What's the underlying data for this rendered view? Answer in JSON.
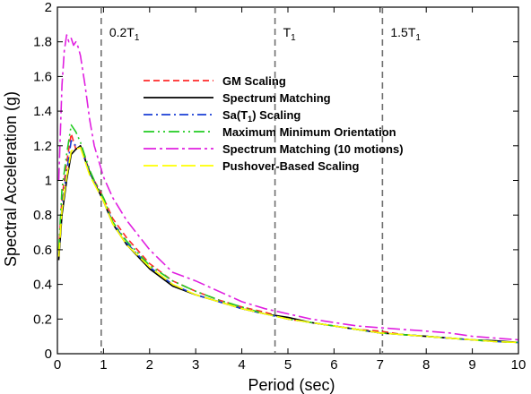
{
  "chart_data": {
    "type": "line",
    "xlabel": "Period (sec)",
    "ylabel": "Spectral Acceleration (g)",
    "xlim": [
      0,
      10
    ],
    "ylim": [
      0,
      2
    ],
    "xticks": [
      "0",
      "1",
      "2",
      "3",
      "4",
      "5",
      "6",
      "7",
      "8",
      "9",
      "10"
    ],
    "yticks": [
      "0",
      "0.2",
      "0.4",
      "0.6",
      "0.8",
      "1",
      "1.2",
      "1.4",
      "1.6",
      "1.8",
      "2"
    ],
    "grid": false,
    "legend_position": "upper-middle",
    "reference_lines": [
      {
        "x": 0.95,
        "label": "0.2T",
        "sub": "1"
      },
      {
        "x": 4.72,
        "label": "T",
        "sub": "1"
      },
      {
        "x": 7.05,
        "label": "1.5T",
        "sub": "1"
      }
    ],
    "series": [
      {
        "name": "GM Scaling",
        "color": "#ff2a2a",
        "dash": "7,4",
        "width": 1.6,
        "x": [
          0.03,
          0.1,
          0.2,
          0.3,
          0.4,
          0.5,
          0.6,
          0.7,
          0.8,
          1.0,
          1.2,
          1.5,
          2,
          2.5,
          3,
          3.5,
          4,
          4.5,
          5,
          5.5,
          6,
          6.5,
          7,
          7.5,
          8,
          8.5,
          9,
          9.5,
          10
        ],
        "y": [
          0.6,
          0.9,
          1.1,
          1.27,
          1.18,
          1.2,
          1.13,
          1.05,
          1.0,
          0.9,
          0.78,
          0.67,
          0.52,
          0.42,
          0.36,
          0.31,
          0.27,
          0.24,
          0.2,
          0.18,
          0.16,
          0.14,
          0.13,
          0.11,
          0.1,
          0.09,
          0.08,
          0.07,
          0.065
        ]
      },
      {
        "name": "Spectrum Matching",
        "color": "#000000",
        "dash": "",
        "width": 1.6,
        "x": [
          0.03,
          0.1,
          0.2,
          0.3,
          0.4,
          0.5,
          0.6,
          0.7,
          0.8,
          1.0,
          1.2,
          1.5,
          2,
          2.5,
          3,
          3.5,
          4,
          4.5,
          5,
          5.5,
          6,
          6.5,
          7,
          7.5,
          8,
          8.5,
          9,
          9.5,
          10
        ],
        "y": [
          0.54,
          0.8,
          1.0,
          1.15,
          1.18,
          1.2,
          1.12,
          1.05,
          0.99,
          0.88,
          0.75,
          0.63,
          0.49,
          0.39,
          0.34,
          0.3,
          0.26,
          0.23,
          0.21,
          0.18,
          0.16,
          0.14,
          0.12,
          0.11,
          0.1,
          0.09,
          0.08,
          0.075,
          0.065
        ]
      },
      {
        "name": "Sa(T1) Scaling",
        "color": "#1a3fd6",
        "dash": "10,4,2,4",
        "width": 1.6,
        "x": [
          0.03,
          0.1,
          0.2,
          0.3,
          0.4,
          0.5,
          0.6,
          0.7,
          0.8,
          1.0,
          1.2,
          1.5,
          2,
          2.5,
          3,
          3.5,
          4,
          4.5,
          5,
          5.5,
          6,
          6.5,
          7,
          7.5,
          8,
          8.5,
          9,
          9.5,
          10
        ],
        "y": [
          0.57,
          0.85,
          1.05,
          1.23,
          1.2,
          1.19,
          1.12,
          1.04,
          0.99,
          0.89,
          0.76,
          0.64,
          0.5,
          0.4,
          0.34,
          0.3,
          0.26,
          0.23,
          0.2,
          0.18,
          0.16,
          0.14,
          0.12,
          0.11,
          0.1,
          0.09,
          0.08,
          0.07,
          0.065
        ]
      },
      {
        "name": "Maximum Minimum Orientation",
        "color": "#22cc22",
        "dash": "12,4,2,4,2,4",
        "width": 1.6,
        "x": [
          0.03,
          0.1,
          0.2,
          0.3,
          0.4,
          0.5,
          0.6,
          0.7,
          0.8,
          1.0,
          1.2,
          1.5,
          2,
          2.5,
          3,
          3.5,
          4,
          4.5,
          5,
          5.5,
          6,
          6.5,
          7,
          7.5,
          8,
          8.5,
          9,
          9.5,
          10
        ],
        "y": [
          0.6,
          0.95,
          1.15,
          1.32,
          1.28,
          1.22,
          1.14,
          1.06,
          1.0,
          0.9,
          0.76,
          0.65,
          0.51,
          0.42,
          0.36,
          0.31,
          0.27,
          0.23,
          0.2,
          0.18,
          0.16,
          0.14,
          0.12,
          0.11,
          0.1,
          0.09,
          0.08,
          0.07,
          0.065
        ]
      },
      {
        "name": "Spectrum Matching (10 motions)",
        "color": "#e020e0",
        "dash": "14,4,3,4",
        "width": 1.6,
        "x": [
          0.03,
          0.1,
          0.15,
          0.2,
          0.25,
          0.3,
          0.35,
          0.4,
          0.45,
          0.5,
          0.6,
          0.7,
          0.8,
          1.0,
          1.2,
          1.5,
          2,
          2.5,
          3,
          3.5,
          4,
          4.5,
          5,
          5.5,
          6,
          6.5,
          7,
          7.5,
          8,
          8.5,
          9,
          9.5,
          10
        ],
        "y": [
          1.0,
          1.55,
          1.75,
          1.84,
          1.8,
          1.82,
          1.78,
          1.8,
          1.77,
          1.72,
          1.55,
          1.35,
          1.2,
          1.02,
          0.9,
          0.77,
          0.6,
          0.47,
          0.42,
          0.36,
          0.3,
          0.26,
          0.23,
          0.2,
          0.18,
          0.16,
          0.15,
          0.14,
          0.13,
          0.12,
          0.1,
          0.09,
          0.08
        ]
      },
      {
        "name": "Pushover-Based Scaling",
        "color": "#ffff00",
        "dash": "16,5",
        "width": 1.6,
        "x": [
          0.03,
          0.1,
          0.2,
          0.3,
          0.4,
          0.5,
          0.6,
          0.7,
          0.8,
          1.0,
          1.2,
          1.5,
          2,
          2.5,
          3,
          3.5,
          4,
          4.5,
          5,
          5.5,
          6,
          6.5,
          7,
          7.5,
          8,
          8.5,
          9,
          9.5,
          10
        ],
        "y": [
          0.56,
          0.83,
          1.02,
          1.17,
          1.18,
          1.19,
          1.11,
          1.03,
          0.98,
          0.88,
          0.75,
          0.63,
          0.5,
          0.4,
          0.34,
          0.3,
          0.26,
          0.23,
          0.2,
          0.18,
          0.16,
          0.14,
          0.12,
          0.11,
          0.1,
          0.09,
          0.08,
          0.07,
          0.065
        ]
      }
    ]
  }
}
